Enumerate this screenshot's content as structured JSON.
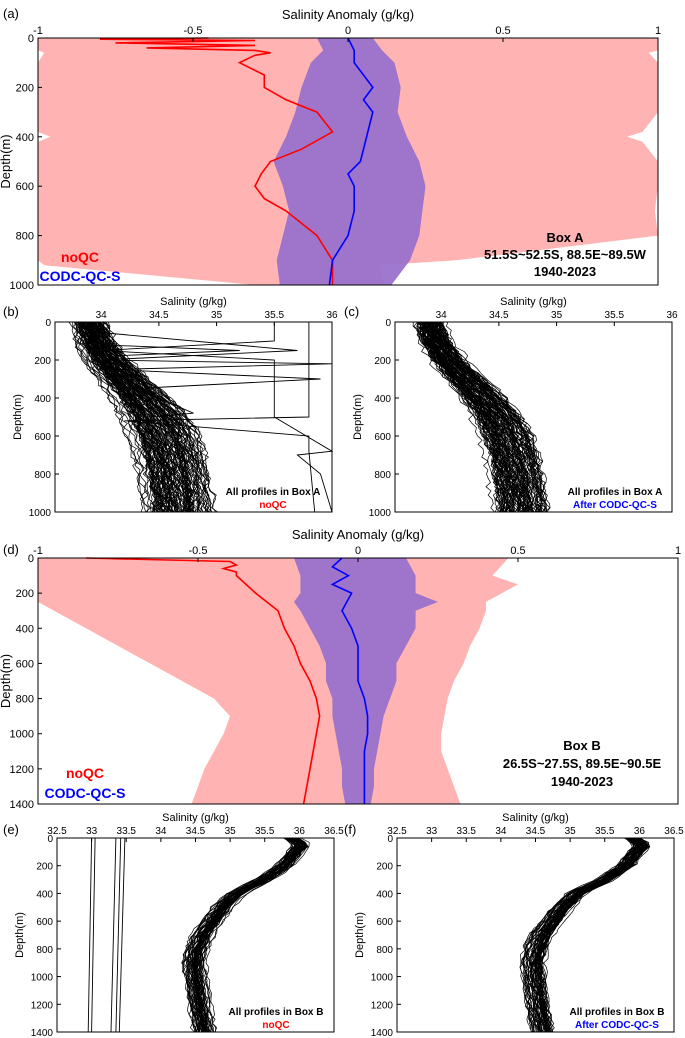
{
  "colors": {
    "noqc": "#ff0000",
    "codc": "#0000ff",
    "noqc_band": "#ffb3b3",
    "codc_band": "#9a72cc",
    "profile": "#000000"
  },
  "panels": {
    "a": {
      "label": "(a)",
      "box": "Box A",
      "region": "51.5S~52.5S, 88.5E~89.5W",
      "years": "1940-2023",
      "legend": [
        "noQC",
        "CODC-QC-S"
      ]
    },
    "b": {
      "label": "(b)",
      "note1": "All profiles in Box A",
      "note2": "noQC"
    },
    "c": {
      "label": "(c)",
      "note1": "All profiles in Box A",
      "note2": "After CODC-QC-S"
    },
    "d": {
      "label": "(d)",
      "box": "Box B",
      "region": "26.5S~27.5S, 89.5E~90.5E",
      "years": "1940-2023",
      "legend": [
        "noQC",
        "CODC-QC-S"
      ]
    },
    "e": {
      "label": "(e)",
      "note1": "All profiles in Box B",
      "note2": "noQC"
    },
    "f": {
      "label": "(f)",
      "note1": "All profiles in Box B",
      "note2": "After CODC-QC-S"
    }
  },
  "chart_data": [
    {
      "id": "a",
      "type": "area",
      "title": "Salinity Anomaly (g/kg)",
      "xlabel": "Salinity Anomaly (g/kg)",
      "ylabel": "Depth(m)",
      "xlim": [
        -1,
        1
      ],
      "ylim": [
        0,
        1000
      ],
      "xticks": [
        -1,
        -0.5,
        0,
        0.5,
        1
      ],
      "xticklabels": [
        "-1",
        "-0.5",
        "0",
        "0.5",
        "1"
      ],
      "yticks": [
        0,
        200,
        400,
        600,
        800,
        1000
      ],
      "yticklabels": [
        "0",
        "200",
        "400",
        "600",
        "800",
        "1000"
      ],
      "series": [
        {
          "name": "noQC",
          "role": "band",
          "depth": [
            0,
            50,
            60,
            100,
            200,
            300,
            380,
            400,
            420,
            500,
            600,
            700,
            800,
            900,
            920,
            1000
          ],
          "lower": [
            -1,
            -1,
            -0.98,
            -1,
            -1,
            -1,
            -1,
            -0.96,
            -1,
            -1,
            -1,
            -1,
            -1,
            -1,
            -0.98,
            -0.3
          ],
          "upper": [
            1,
            1,
            0.97,
            1,
            1,
            1,
            0.95,
            0.9,
            0.95,
            1,
            1,
            0.99,
            1,
            0.35,
            0.1,
            0.12
          ]
        },
        {
          "name": "noQC",
          "role": "mean",
          "depth": [
            0,
            5,
            10,
            20,
            30,
            40,
            50,
            60,
            70,
            100,
            150,
            200,
            250,
            300,
            380,
            450,
            500,
            550,
            600,
            650,
            700,
            800,
            900,
            1000
          ],
          "values": [
            -0.45,
            -0.8,
            -0.3,
            -0.75,
            -0.3,
            -0.65,
            -0.3,
            -0.25,
            -0.3,
            -0.35,
            -0.27,
            -0.27,
            -0.2,
            -0.1,
            -0.05,
            -0.15,
            -0.25,
            -0.28,
            -0.3,
            -0.27,
            -0.2,
            -0.1,
            -0.05,
            -0.05
          ]
        },
        {
          "name": "CODC-QC-S",
          "role": "band",
          "depth": [
            0,
            50,
            100,
            200,
            300,
            400,
            500,
            600,
            700,
            800,
            900,
            1000
          ],
          "lower": [
            -0.1,
            -0.08,
            -0.12,
            -0.15,
            -0.17,
            -0.2,
            -0.24,
            -0.21,
            -0.19,
            -0.21,
            -0.23,
            -0.22
          ],
          "upper": [
            0.08,
            0.11,
            0.15,
            0.17,
            0.16,
            0.19,
            0.23,
            0.25,
            0.24,
            0.23,
            0.2,
            0.14
          ]
        },
        {
          "name": "CODC-QC-S",
          "role": "mean",
          "depth": [
            0,
            50,
            100,
            150,
            200,
            250,
            300,
            400,
            500,
            550,
            600,
            700,
            800,
            900,
            1000
          ],
          "values": [
            0.0,
            0.02,
            0.02,
            0.05,
            0.08,
            0.05,
            0.08,
            0.06,
            0.04,
            0.0,
            0.02,
            0.02,
            0.0,
            -0.05,
            -0.06
          ]
        }
      ]
    },
    {
      "id": "b",
      "type": "line",
      "subtitle": "noQC",
      "xlabel": "Salinity (g/kg)",
      "ylabel": "Depth(m)",
      "xlim": [
        33.6,
        36
      ],
      "ylim": [
        0,
        1000
      ],
      "xticks": [
        34,
        34.5,
        35,
        35.5,
        36
      ],
      "xticklabels": [
        "34",
        "34.5",
        "35",
        "35.5",
        "36"
      ],
      "yticks": [
        0,
        200,
        400,
        600,
        800,
        1000
      ],
      "yticklabels": [
        "0",
        "200",
        "400",
        "600",
        "800",
        "1000"
      ],
      "profiles": {
        "count": 120,
        "base_depth": [
          0,
          100,
          200,
          300,
          400,
          500,
          600,
          700,
          800,
          900,
          1000
        ],
        "base_values": [
          33.9,
          33.95,
          34.05,
          34.2,
          34.35,
          34.47,
          34.55,
          34.6,
          34.63,
          34.66,
          34.68
        ],
        "spread": 0.35
      },
      "outliers": [
        {
          "depth": [
            0,
            50,
            150,
            200,
            220,
            250,
            300,
            350,
            480,
            500,
            700,
            1000
          ],
          "values": [
            33.8,
            33.9,
            35.7,
            34.0,
            36.0,
            34.1,
            35.9,
            34.3,
            34.8,
            34.4,
            34.6,
            34.7
          ]
        },
        {
          "depth": [
            0,
            100,
            150,
            200,
            500,
            680,
            700,
            800,
            1000
          ],
          "values": [
            35.5,
            35.5,
            34.0,
            35.5,
            35.5,
            36.0,
            35.7,
            35.9,
            36.0
          ]
        },
        {
          "depth": [
            0,
            200,
            500,
            520,
            600,
            680,
            1000
          ],
          "values": [
            35.8,
            35.8,
            35.8,
            34.2,
            35.8,
            35.8,
            35.85
          ]
        },
        {
          "depth": [
            0,
            120,
            150,
            180,
            200,
            300,
            400,
            600,
            1000
          ],
          "values": [
            33.95,
            34.0,
            35.2,
            34.05,
            34.1,
            34.2,
            34.4,
            34.55,
            34.65
          ]
        }
      ]
    },
    {
      "id": "c",
      "type": "line",
      "subtitle": "After CODC-QC-S",
      "xlabel": "Salinity (g/kg)",
      "ylabel": "Depth(m)",
      "xlim": [
        33.6,
        36
      ],
      "ylim": [
        0,
        1000
      ],
      "xticks": [
        34,
        34.5,
        35,
        35.5,
        36
      ],
      "xticklabels": [
        "34",
        "34.5",
        "35",
        "35.5",
        "36"
      ],
      "yticks": [
        0,
        200,
        400,
        600,
        800,
        1000
      ],
      "yticklabels": [
        "0",
        "200",
        "400",
        "600",
        "800",
        "1000"
      ],
      "profiles": {
        "count": 110,
        "base_depth": [
          0,
          100,
          200,
          300,
          400,
          500,
          600,
          700,
          800,
          900,
          1000
        ],
        "base_values": [
          33.9,
          33.95,
          34.05,
          34.2,
          34.35,
          34.47,
          34.55,
          34.6,
          34.63,
          34.66,
          34.68
        ],
        "spread": 0.3
      },
      "outliers": []
    },
    {
      "id": "d",
      "type": "area",
      "title": "Salinity Anomaly (g/kg)",
      "xlabel": "Salinity Anomaly (g/kg)",
      "ylabel": "Depth(m)",
      "xlim": [
        -1,
        1
      ],
      "ylim": [
        0,
        1400
      ],
      "xticks": [
        -1,
        -0.5,
        0,
        0.5,
        1
      ],
      "xticklabels": [
        "-1",
        "-0.5",
        "0",
        "0.5",
        "1"
      ],
      "yticks": [
        0,
        200,
        400,
        600,
        800,
        1000,
        1200,
        1400
      ],
      "yticklabels": [
        "0",
        "200",
        "400",
        "600",
        "800",
        "1000",
        "1200",
        "1400"
      ],
      "series": [
        {
          "name": "noQC",
          "role": "band",
          "depth": [
            0,
            100,
            150,
            200,
            250,
            300,
            400,
            500,
            600,
            700,
            800,
            900,
            1000,
            1100,
            1200,
            1300,
            1400
          ],
          "lower": [
            -1,
            -1,
            -1,
            -1,
            -1,
            -0.95,
            -0.85,
            -0.75,
            -0.65,
            -0.55,
            -0.45,
            -0.4,
            -0.42,
            -0.45,
            -0.48,
            -0.5,
            -0.52
          ],
          "upper": [
            0.47,
            0.42,
            0.5,
            0.45,
            0.4,
            0.4,
            0.38,
            0.35,
            0.33,
            0.3,
            0.28,
            0.27,
            0.26,
            0.26,
            0.28,
            0.3,
            0.32
          ]
        },
        {
          "name": "noQC",
          "role": "mean",
          "depth": [
            0,
            20,
            40,
            60,
            80,
            100,
            150,
            200,
            300,
            400,
            500,
            600,
            700,
            800,
            900,
            1000,
            1100,
            1200,
            1300,
            1400
          ],
          "values": [
            -0.85,
            -0.4,
            -0.38,
            -0.42,
            -0.38,
            -0.38,
            -0.35,
            -0.32,
            -0.25,
            -0.23,
            -0.2,
            -0.18,
            -0.15,
            -0.13,
            -0.12,
            -0.13,
            -0.14,
            -0.15,
            -0.16,
            -0.17
          ]
        },
        {
          "name": "CODC-QC-S",
          "role": "band",
          "depth": [
            0,
            100,
            200,
            250,
            300,
            400,
            500,
            600,
            700,
            800,
            900,
            1000,
            1100,
            1200,
            1300,
            1400
          ],
          "lower": [
            -0.2,
            -0.18,
            -0.18,
            -0.2,
            -0.18,
            -0.15,
            -0.12,
            -0.1,
            -0.1,
            -0.08,
            -0.08,
            -0.07,
            -0.06,
            -0.05,
            -0.05,
            -0.04
          ],
          "upper": [
            0.15,
            0.18,
            0.18,
            0.25,
            0.18,
            0.18,
            0.15,
            0.12,
            0.12,
            0.1,
            0.08,
            0.07,
            0.06,
            0.05,
            0.05,
            0.04
          ]
        },
        {
          "name": "CODC-QC-S",
          "role": "mean",
          "depth": [
            0,
            50,
            100,
            150,
            200,
            300,
            400,
            500,
            600,
            700,
            800,
            900,
            1000,
            1100,
            1200,
            1300,
            1400
          ],
          "values": [
            -0.05,
            -0.08,
            -0.03,
            -0.08,
            -0.02,
            -0.05,
            -0.02,
            0.0,
            0.0,
            0.0,
            0.02,
            0.03,
            0.03,
            0.02,
            0.02,
            0.02,
            0.02
          ]
        }
      ]
    },
    {
      "id": "e",
      "type": "line",
      "subtitle": "noQC",
      "xlabel": "Salinity (g/kg)",
      "ylabel": "Depth(m)",
      "xlim": [
        32.5,
        36.5
      ],
      "ylim": [
        0,
        1400
      ],
      "xticks": [
        32.5,
        33,
        33.5,
        34,
        34.5,
        35,
        35.5,
        36,
        36.5
      ],
      "xticklabels": [
        "32.5",
        "33",
        "33.5",
        "34",
        "34.5",
        "35",
        "35.5",
        "36",
        "36.5"
      ],
      "yticks": [
        0,
        200,
        400,
        600,
        800,
        1000,
        1200,
        1400
      ],
      "yticklabels": [
        "0",
        "200",
        "400",
        "600",
        "800",
        "1000",
        "1200",
        "1400"
      ],
      "profiles": {
        "count": 60,
        "base_depth": [
          0,
          50,
          100,
          200,
          300,
          400,
          500,
          600,
          700,
          800,
          900,
          1000,
          1200,
          1400
        ],
        "base_values": [
          35.9,
          36.05,
          35.95,
          35.8,
          35.5,
          35.1,
          34.9,
          34.75,
          34.6,
          34.52,
          34.48,
          34.5,
          34.55,
          34.62
        ],
        "spread": 0.2
      },
      "outliers": [
        {
          "depth": [
            0,
            1400
          ],
          "values": [
            33.0,
            32.95
          ]
        },
        {
          "depth": [
            0,
            1400
          ],
          "values": [
            33.05,
            33.0
          ]
        },
        {
          "depth": [
            0,
            1400
          ],
          "values": [
            33.35,
            33.28
          ]
        },
        {
          "depth": [
            0,
            1400
          ],
          "values": [
            33.42,
            33.35
          ]
        },
        {
          "depth": [
            0,
            1400
          ],
          "values": [
            33.48,
            33.4
          ]
        }
      ]
    },
    {
      "id": "f",
      "type": "line",
      "subtitle": "After CODC-QC-S",
      "xlabel": "Salinity (g/kg)",
      "ylabel": "Depth(m)",
      "xlim": [
        32.5,
        36.5
      ],
      "ylim": [
        0,
        1400
      ],
      "xticks": [
        32.5,
        33,
        33.5,
        34,
        34.5,
        35,
        35.5,
        36,
        36.5
      ],
      "xticklabels": [
        "32.5",
        "33",
        "33.5",
        "34",
        "34.5",
        "35",
        "35.5",
        "36",
        "36.5"
      ],
      "yticks": [
        0,
        200,
        400,
        600,
        800,
        1000,
        1200,
        1400
      ],
      "yticklabels": [
        "0",
        "200",
        "400",
        "600",
        "800",
        "1000",
        "1200",
        "1400"
      ],
      "profiles": {
        "count": 60,
        "base_depth": [
          0,
          50,
          100,
          200,
          300,
          400,
          500,
          600,
          700,
          800,
          900,
          1000,
          1200,
          1400
        ],
        "base_values": [
          35.9,
          36.05,
          35.95,
          35.8,
          35.5,
          35.1,
          34.9,
          34.75,
          34.6,
          34.52,
          34.48,
          34.5,
          34.55,
          34.62
        ],
        "spread": 0.2
      },
      "outliers": []
    }
  ]
}
